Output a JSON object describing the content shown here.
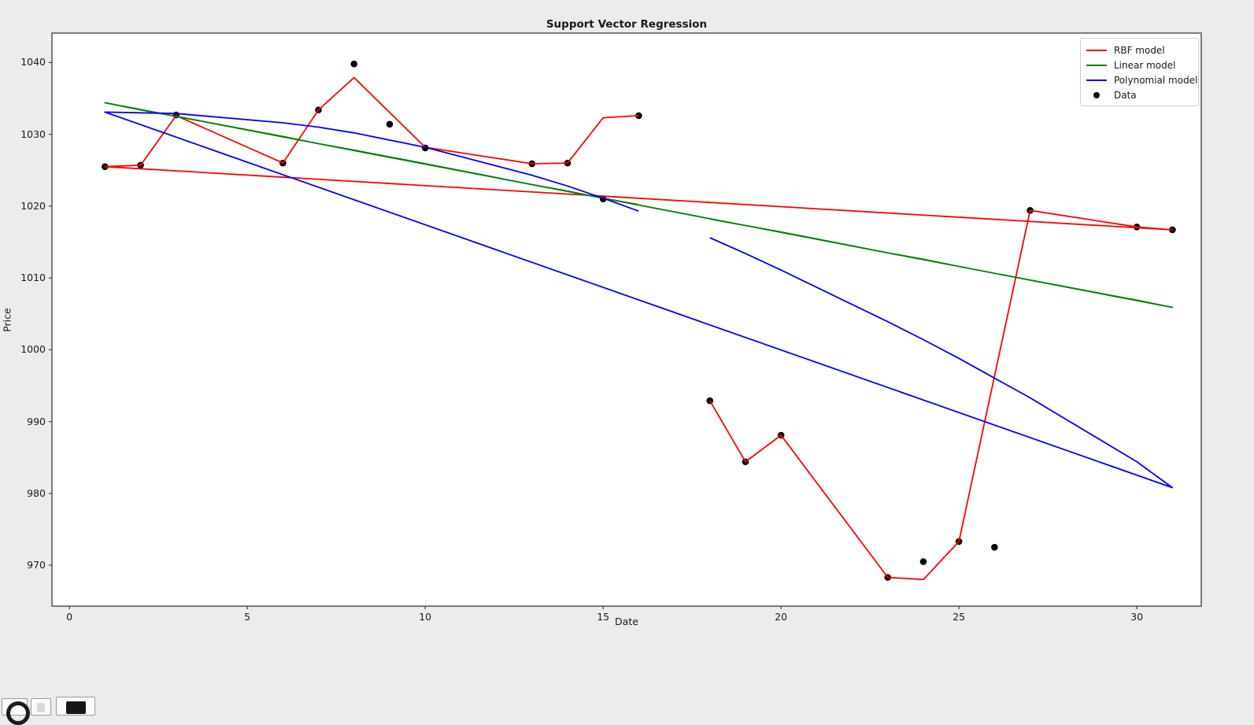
{
  "window": {
    "background": "#ececec",
    "plot_background": "#ffffff",
    "spine_color": "#3c3c3c",
    "text_color": "#1a1a1a"
  },
  "chart_data": {
    "type": "line+scatter",
    "title": "Support Vector Regression",
    "xlabel": "Date",
    "ylabel": "Price",
    "grid": false,
    "legend_position": "upper right",
    "xlim": [
      -0.49,
      31.81
    ],
    "ylim": [
      964.3,
      1044.1
    ],
    "xticks": [
      0,
      5,
      10,
      15,
      20,
      25,
      30
    ],
    "yticks": [
      970,
      980,
      990,
      1000,
      1010,
      1020,
      1030,
      1040
    ],
    "note_order": "model lines are drawn through dates in file order 18..31 then 1..16, producing the long return segment from date 31 back to date 1",
    "series": [
      {
        "name": "RBF model",
        "color": "#ff0000",
        "points": [
          [
            18,
            992.9
          ],
          [
            19,
            984.4
          ],
          [
            20,
            988.1
          ],
          [
            23,
            968.3
          ],
          [
            24,
            968.0
          ],
          [
            25,
            973.3
          ],
          [
            27,
            1019.4
          ],
          [
            30,
            1017.1
          ],
          [
            31,
            1016.7
          ],
          [
            1,
            1025.5
          ],
          [
            2,
            1025.7
          ],
          [
            3,
            1032.6
          ],
          [
            6,
            1026.0
          ],
          [
            7,
            1033.4
          ],
          [
            8,
            1037.9
          ],
          [
            10,
            1028.2
          ],
          [
            13,
            1025.9
          ],
          [
            14,
            1026.0
          ],
          [
            15,
            1032.3
          ],
          [
            16,
            1032.6
          ]
        ]
      },
      {
        "name": "Linear model",
        "color": "#008000",
        "points": [
          [
            18,
            1018.2
          ],
          [
            19,
            1017.3
          ],
          [
            20,
            1016.4
          ],
          [
            23,
            1013.5
          ],
          [
            24,
            1012.6
          ],
          [
            25,
            1011.6
          ],
          [
            27,
            1009.7
          ],
          [
            30,
            1006.9
          ],
          [
            31,
            1005.9
          ],
          [
            1,
            1034.4
          ],
          [
            2,
            1033.4
          ],
          [
            3,
            1032.5
          ],
          [
            6,
            1029.7
          ],
          [
            7,
            1028.7
          ],
          [
            8,
            1027.8
          ],
          [
            10,
            1025.9
          ],
          [
            13,
            1023.0
          ],
          [
            14,
            1022.1
          ],
          [
            15,
            1021.1
          ],
          [
            16,
            1020.2
          ]
        ]
      },
      {
        "name": "Polynomial model",
        "color": "#0000ff",
        "points": [
          [
            18,
            1015.6
          ],
          [
            19,
            1013.4
          ],
          [
            20,
            1011.1
          ],
          [
            23,
            1003.9
          ],
          [
            24,
            1001.4
          ],
          [
            25,
            998.8
          ],
          [
            27,
            993.3
          ],
          [
            30,
            984.4
          ],
          [
            31,
            980.8
          ],
          [
            1,
            1033.1
          ],
          [
            2,
            1033.0
          ],
          [
            3,
            1032.9
          ],
          [
            6,
            1031.6
          ],
          [
            7,
            1031.0
          ],
          [
            8,
            1030.2
          ],
          [
            10,
            1028.2
          ],
          [
            13,
            1024.3
          ],
          [
            14,
            1022.8
          ],
          [
            15,
            1021.1
          ],
          [
            16,
            1019.3
          ]
        ]
      }
    ],
    "scatter": {
      "name": "Data",
      "color": "#000000",
      "points": [
        [
          1,
          1025.5
        ],
        [
          2,
          1025.7
        ],
        [
          3,
          1032.7
        ],
        [
          6,
          1026.0
        ],
        [
          7,
          1033.4
        ],
        [
          8,
          1039.8
        ],
        [
          9,
          1031.4
        ],
        [
          10,
          1028.1
        ],
        [
          13,
          1025.9
        ],
        [
          14,
          1026.0
        ],
        [
          15,
          1021.0
        ],
        [
          16,
          1032.6
        ],
        [
          18,
          992.9
        ],
        [
          19,
          984.4
        ],
        [
          20,
          988.1
        ],
        [
          23,
          968.3
        ],
        [
          24,
          970.5
        ],
        [
          25,
          973.3
        ],
        [
          26,
          972.5
        ],
        [
          27,
          1019.4
        ],
        [
          30,
          1017.1
        ],
        [
          31,
          1016.7
        ]
      ]
    },
    "legend": [
      {
        "label": "RBF model",
        "marker": "line",
        "color": "#ff0000"
      },
      {
        "label": "Linear model",
        "marker": "line",
        "color": "#008000"
      },
      {
        "label": "Polynomial model",
        "marker": "line",
        "color": "#0000ff"
      },
      {
        "label": "Data",
        "marker": "dot",
        "color": "#000000"
      }
    ]
  },
  "toolbar": {
    "icons": [
      {
        "name": "circle-app-icon"
      },
      {
        "name": "blank-app-icon"
      },
      {
        "name": "dark-square-app-icon"
      }
    ]
  }
}
